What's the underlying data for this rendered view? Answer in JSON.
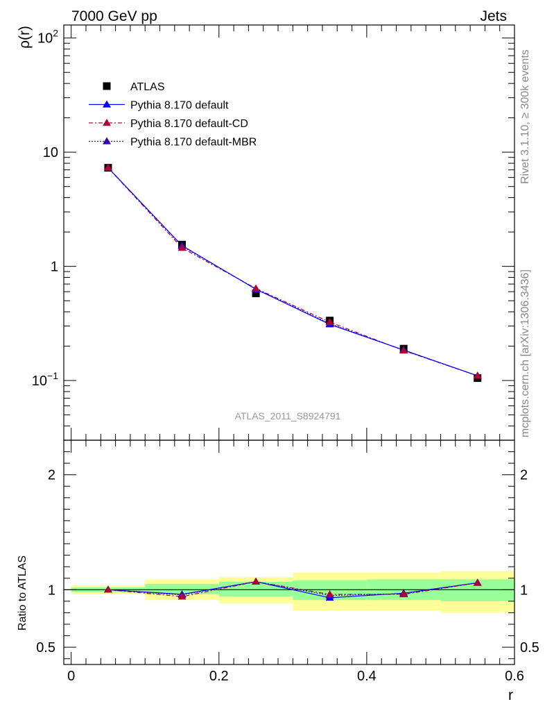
{
  "header": {
    "left": "7000 GeV pp",
    "right": "Jets"
  },
  "side_text": {
    "rivet": "Rivet 3.1.10, ≥ 300k events",
    "mcplots": "mcplots.cern.ch [arXiv:1306.3436]"
  },
  "watermark": "ATLAS_2011_S8924791",
  "colors": {
    "atlas": "#000000",
    "default": "#0000ff",
    "cd": "#b0003a",
    "mbr": "#3300bb",
    "band_inner": "#99ff99",
    "band_outer": "#ffff99"
  },
  "chart_data": [
    {
      "type": "line",
      "panel": "main",
      "ylabel": "ρ(r)",
      "yscale": "log",
      "ylim": [
        0.03,
        130
      ],
      "xlim": [
        -0.01,
        0.6
      ],
      "ytick_labels": [
        {
          "value": 0.1,
          "base": "10",
          "exp": "−1"
        },
        {
          "value": 1,
          "base": "1",
          "exp": ""
        },
        {
          "value": 10,
          "base": "10",
          "exp": ""
        },
        {
          "value": 100,
          "base": "10",
          "exp": "2"
        }
      ],
      "legend": [
        {
          "name": "ATLAS",
          "key": "atlas"
        },
        {
          "name": "Pythia 8.170 default",
          "key": "default"
        },
        {
          "name": "Pythia 8.170 default-CD",
          "key": "cd"
        },
        {
          "name": "Pythia 8.170 default-MBR",
          "key": "mbr"
        }
      ],
      "x": [
        0.05,
        0.15,
        0.25,
        0.35,
        0.45,
        0.55
      ],
      "series": [
        {
          "key": "atlas",
          "values": [
            7.3,
            1.55,
            0.58,
            0.335,
            0.19,
            0.105
          ]
        },
        {
          "key": "default",
          "values": [
            7.3,
            1.52,
            0.63,
            0.31,
            0.185,
            0.11
          ]
        },
        {
          "key": "cd",
          "values": [
            7.3,
            1.45,
            0.64,
            0.325,
            0.183,
            0.11
          ]
        },
        {
          "key": "mbr",
          "values": [
            7.3,
            1.5,
            0.635,
            0.315,
            0.184,
            0.11
          ]
        }
      ]
    },
    {
      "type": "line",
      "panel": "ratio",
      "ylabel": "Ratio to ATLAS",
      "xlabel": "r",
      "ylim": [
        0.35,
        2.3
      ],
      "xlim": [
        -0.01,
        0.6
      ],
      "xticks": [
        0,
        0.2,
        0.4,
        0.6
      ],
      "xtick_labels": [
        "0",
        "0.2",
        "0.4",
        "0.6"
      ],
      "yticks": [
        0.5,
        1,
        2
      ],
      "ytick_labels": [
        "0.5",
        "1",
        "2"
      ],
      "bands": [
        {
          "x0": 0.0,
          "x1": 0.1,
          "inner": [
            0.98,
            1.02
          ],
          "outer": [
            0.96,
            1.04
          ]
        },
        {
          "x0": 0.1,
          "x1": 0.2,
          "inner": [
            0.96,
            1.05
          ],
          "outer": [
            0.91,
            1.09
          ]
        },
        {
          "x0": 0.2,
          "x1": 0.3,
          "inner": [
            0.94,
            1.07
          ],
          "outer": [
            0.88,
            1.11
          ]
        },
        {
          "x0": 0.3,
          "x1": 0.4,
          "inner": [
            0.91,
            1.08
          ],
          "outer": [
            0.82,
            1.15
          ]
        },
        {
          "x0": 0.4,
          "x1": 0.5,
          "inner": [
            0.91,
            1.09
          ],
          "outer": [
            0.82,
            1.15
          ]
        },
        {
          "x0": 0.5,
          "x1": 0.6,
          "inner": [
            0.9,
            1.09
          ],
          "outer": [
            0.8,
            1.16
          ]
        }
      ],
      "x": [
        0.05,
        0.15,
        0.25,
        0.35,
        0.45,
        0.55
      ],
      "series": [
        {
          "key": "default",
          "values": [
            1.0,
            0.96,
            1.07,
            0.93,
            0.97,
            1.06
          ]
        },
        {
          "key": "cd",
          "values": [
            1.0,
            0.94,
            1.07,
            0.96,
            0.96,
            1.06
          ]
        },
        {
          "key": "mbr",
          "values": [
            1.0,
            0.955,
            1.07,
            0.95,
            0.965,
            1.06
          ]
        }
      ]
    }
  ]
}
